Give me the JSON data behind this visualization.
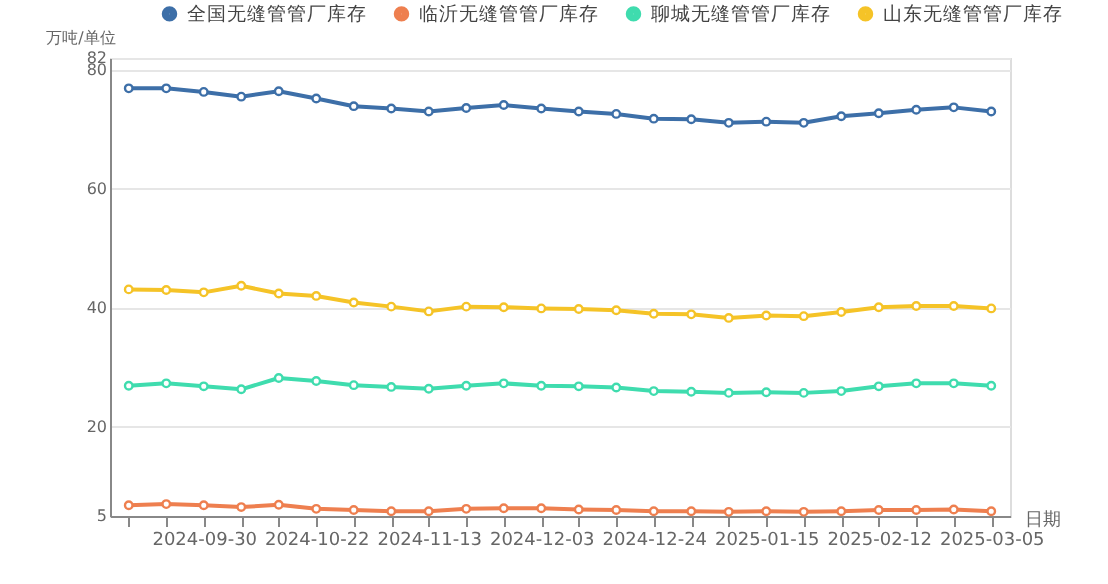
{
  "chart_data": {
    "type": "line",
    "ylabel": "万吨/单位",
    "xlabel": "日期",
    "categories": [
      null,
      null,
      "2024-09-30",
      null,
      null,
      "2024-10-22",
      null,
      null,
      "2024-11-13",
      null,
      null,
      "2024-12-03",
      null,
      null,
      "2024-12-24",
      null,
      null,
      "2025-01-15",
      null,
      null,
      "2025-02-12",
      null,
      null,
      "2025-03-05"
    ],
    "series": [
      {
        "name": "全国无缝管管厂库存",
        "color": "#3d6fa8",
        "values": [
          76.9,
          76.9,
          76.3,
          75.5,
          76.4,
          75.2,
          73.9,
          73.5,
          73.0,
          73.6,
          74.1,
          73.5,
          73.0,
          72.6,
          71.8,
          71.7,
          71.1,
          71.3,
          71.1,
          72.2,
          72.7,
          73.3,
          73.7,
          73.0
        ]
      },
      {
        "name": "临沂无缝管管厂库存",
        "color": "#ee7f4f",
        "values": [
          6.8,
          7.0,
          6.8,
          6.5,
          6.9,
          6.2,
          6.0,
          5.8,
          5.8,
          6.2,
          6.3,
          6.3,
          6.1,
          6.0,
          5.8,
          5.8,
          5.7,
          5.8,
          5.7,
          5.8,
          6.0,
          6.0,
          6.1,
          5.8
        ]
      },
      {
        "name": "聊城无缝管管厂库存",
        "color": "#3fdcae",
        "values": [
          26.9,
          27.3,
          26.8,
          26.3,
          28.2,
          27.7,
          27.0,
          26.7,
          26.4,
          26.9,
          27.3,
          26.9,
          26.8,
          26.6,
          26.0,
          25.9,
          25.7,
          25.8,
          25.7,
          26.0,
          26.8,
          27.3,
          27.3,
          26.9
        ]
      },
      {
        "name": "山东无缝管管厂库存",
        "color": "#f5c327",
        "values": [
          43.1,
          43.0,
          42.6,
          43.7,
          42.4,
          42.0,
          40.9,
          40.2,
          39.4,
          40.2,
          40.1,
          39.9,
          39.8,
          39.6,
          39.0,
          38.9,
          38.3,
          38.7,
          38.6,
          39.3,
          40.1,
          40.3,
          40.3,
          39.9
        ]
      }
    ],
    "ylim": [
      5,
      82
    ],
    "yticks": [
      5,
      20,
      40,
      60,
      80,
      82
    ],
    "grid": "y",
    "legend": "top",
    "marker": "circle",
    "line_style": "solid"
  }
}
